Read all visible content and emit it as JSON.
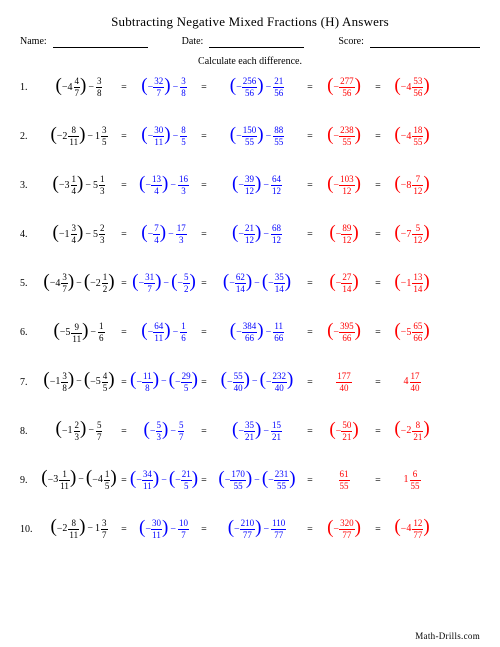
{
  "title": "Subtracting Negative Mixed Fractions (H) Answers",
  "header": {
    "name_lbl": "Name:",
    "date_lbl": "Date:",
    "score_lbl": "Score:"
  },
  "instruction": "Calculate each difference.",
  "footer": "Math-Drills.com",
  "col_widths": {
    "c0": 78,
    "c1": 68,
    "c2": 94,
    "c3": 56,
    "c4": 56
  },
  "colors": {
    "black": "#000000",
    "blue": "#0000ff",
    "red": "#ff0000"
  },
  "rows": [
    {
      "n": "1.",
      "c0": {
        "type": "mix_minus_frac",
        "a": {
          "s": "-",
          "w": "4",
          "n": "4",
          "d": "7"
        },
        "b": {
          "n": "3",
          "d": "8"
        }
      },
      "c1": {
        "type": "frac_minus_frac",
        "a": {
          "s": "-",
          "n": "32",
          "d": "7"
        },
        "b": {
          "n": "3",
          "d": "8"
        }
      },
      "c2": {
        "type": "frac_minus_frac",
        "a": {
          "s": "-",
          "n": "256",
          "d": "56"
        },
        "b": {
          "n": "21",
          "d": "56"
        }
      },
      "c3": {
        "type": "pfrac",
        "s": "-",
        "n": "277",
        "d": "56",
        "red": true
      },
      "c4": {
        "type": "pmix",
        "s": "-",
        "w": "4",
        "n": "53",
        "d": "56",
        "red": true
      }
    },
    {
      "n": "2.",
      "c0": {
        "type": "mix_minus_mix",
        "a": {
          "s": "-",
          "w": "2",
          "n": "8",
          "d": "11"
        },
        "b": {
          "w": "1",
          "n": "3",
          "d": "5"
        }
      },
      "c1": {
        "type": "frac_minus_frac",
        "a": {
          "s": "-",
          "n": "30",
          "d": "11"
        },
        "b": {
          "n": "8",
          "d": "5"
        }
      },
      "c2": {
        "type": "frac_minus_frac",
        "a": {
          "s": "-",
          "n": "150",
          "d": "55"
        },
        "b": {
          "n": "88",
          "d": "55"
        }
      },
      "c3": {
        "type": "pfrac",
        "s": "-",
        "n": "238",
        "d": "55",
        "red": true
      },
      "c4": {
        "type": "pmix",
        "s": "-",
        "w": "4",
        "n": "18",
        "d": "55",
        "red": true
      }
    },
    {
      "n": "3.",
      "c0": {
        "type": "mix_minus_mix",
        "a": {
          "s": "-",
          "w": "3",
          "n": "1",
          "d": "4"
        },
        "b": {
          "w": "5",
          "n": "1",
          "d": "3"
        }
      },
      "c1": {
        "type": "frac_minus_frac",
        "a": {
          "s": "-",
          "n": "13",
          "d": "4"
        },
        "b": {
          "n": "16",
          "d": "3"
        }
      },
      "c2": {
        "type": "frac_minus_frac",
        "a": {
          "s": "-",
          "n": "39",
          "d": "12"
        },
        "b": {
          "n": "64",
          "d": "12"
        }
      },
      "c3": {
        "type": "pfrac",
        "s": "-",
        "n": "103",
        "d": "12",
        "red": true
      },
      "c4": {
        "type": "pmix",
        "s": "-",
        "w": "8",
        "n": "7",
        "d": "12",
        "red": true
      }
    },
    {
      "n": "4.",
      "c0": {
        "type": "mix_minus_mix",
        "a": {
          "s": "-",
          "w": "1",
          "n": "3",
          "d": "4"
        },
        "b": {
          "w": "5",
          "n": "2",
          "d": "3"
        }
      },
      "c1": {
        "type": "frac_minus_frac",
        "a": {
          "s": "-",
          "n": "7",
          "d": "4"
        },
        "b": {
          "n": "17",
          "d": "3"
        }
      },
      "c2": {
        "type": "frac_minus_frac",
        "a": {
          "s": "-",
          "n": "21",
          "d": "12"
        },
        "b": {
          "n": "68",
          "d": "12"
        }
      },
      "c3": {
        "type": "pfrac",
        "s": "-",
        "n": "89",
        "d": "12",
        "red": true
      },
      "c4": {
        "type": "pmix",
        "s": "-",
        "w": "7",
        "n": "5",
        "d": "12",
        "red": true
      }
    },
    {
      "n": "5.",
      "c0": {
        "type": "mix_minus_pmix",
        "a": {
          "s": "-",
          "w": "4",
          "n": "3",
          "d": "7"
        },
        "b": {
          "s": "-",
          "w": "2",
          "n": "1",
          "d": "2"
        }
      },
      "c1": {
        "type": "frac_minus_pfrac",
        "a": {
          "s": "-",
          "n": "31",
          "d": "7"
        },
        "b": {
          "s": "-",
          "n": "5",
          "d": "2"
        }
      },
      "c2": {
        "type": "frac_minus_pfrac",
        "a": {
          "s": "-",
          "n": "62",
          "d": "14"
        },
        "b": {
          "s": "-",
          "n": "35",
          "d": "14"
        }
      },
      "c3": {
        "type": "pfrac",
        "s": "-",
        "n": "27",
        "d": "14",
        "red": true
      },
      "c4": {
        "type": "pmix",
        "s": "-",
        "w": "1",
        "n": "13",
        "d": "14",
        "red": true
      }
    },
    {
      "n": "6.",
      "c0": {
        "type": "mix_minus_frac",
        "a": {
          "s": "-",
          "w": "5",
          "n": "9",
          "d": "11"
        },
        "b": {
          "n": "1",
          "d": "6"
        }
      },
      "c1": {
        "type": "frac_minus_frac",
        "a": {
          "s": "-",
          "n": "64",
          "d": "11"
        },
        "b": {
          "n": "1",
          "d": "6"
        }
      },
      "c2": {
        "type": "frac_minus_frac",
        "a": {
          "s": "-",
          "n": "384",
          "d": "66"
        },
        "b": {
          "n": "11",
          "d": "66"
        }
      },
      "c3": {
        "type": "pfrac",
        "s": "-",
        "n": "395",
        "d": "66",
        "red": true
      },
      "c4": {
        "type": "pmix",
        "s": "-",
        "w": "5",
        "n": "65",
        "d": "66",
        "red": true
      }
    },
    {
      "n": "7.",
      "c0": {
        "type": "mix_minus_pmix",
        "a": {
          "s": "-",
          "w": "1",
          "n": "3",
          "d": "8"
        },
        "b": {
          "s": "-",
          "w": "5",
          "n": "4",
          "d": "5"
        }
      },
      "c1": {
        "type": "frac_minus_pfrac",
        "a": {
          "s": "-",
          "n": "11",
          "d": "8"
        },
        "b": {
          "s": "-",
          "n": "29",
          "d": "5"
        }
      },
      "c2": {
        "type": "frac_minus_pfrac",
        "a": {
          "s": "-",
          "n": "55",
          "d": "40"
        },
        "b": {
          "s": "-",
          "n": "232",
          "d": "40"
        }
      },
      "c3": {
        "type": "bfrac",
        "n": "177",
        "d": "40",
        "red": true
      },
      "c4": {
        "type": "bmix",
        "w": "4",
        "n": "17",
        "d": "40",
        "red": true
      }
    },
    {
      "n": "8.",
      "c0": {
        "type": "mix_minus_frac",
        "a": {
          "s": "-",
          "w": "1",
          "n": "2",
          "d": "3"
        },
        "b": {
          "n": "5",
          "d": "7"
        }
      },
      "c1": {
        "type": "frac_minus_frac",
        "a": {
          "s": "-",
          "n": "5",
          "d": "3"
        },
        "b": {
          "n": "5",
          "d": "7"
        }
      },
      "c2": {
        "type": "frac_minus_frac",
        "a": {
          "s": "-",
          "n": "35",
          "d": "21"
        },
        "b": {
          "n": "15",
          "d": "21"
        }
      },
      "c3": {
        "type": "pfrac",
        "s": "-",
        "n": "50",
        "d": "21",
        "red": true
      },
      "c4": {
        "type": "pmix",
        "s": "-",
        "w": "2",
        "n": "8",
        "d": "21",
        "red": true
      }
    },
    {
      "n": "9.",
      "c0": {
        "type": "mix_minus_pmix",
        "a": {
          "s": "-",
          "w": "3",
          "n": "1",
          "d": "11"
        },
        "b": {
          "s": "-",
          "w": "4",
          "n": "1",
          "d": "5"
        }
      },
      "c1": {
        "type": "frac_minus_pfrac",
        "a": {
          "s": "-",
          "n": "34",
          "d": "11"
        },
        "b": {
          "s": "-",
          "n": "21",
          "d": "5"
        }
      },
      "c2": {
        "type": "frac_minus_pfrac",
        "a": {
          "s": "-",
          "n": "170",
          "d": "55"
        },
        "b": {
          "s": "-",
          "n": "231",
          "d": "55"
        }
      },
      "c3": {
        "type": "bfrac",
        "n": "61",
        "d": "55",
        "red": true
      },
      "c4": {
        "type": "bmix",
        "w": "1",
        "n": "6",
        "d": "55",
        "red": true
      }
    },
    {
      "n": "10.",
      "c0": {
        "type": "mix_minus_mix",
        "a": {
          "s": "-",
          "w": "2",
          "n": "8",
          "d": "11"
        },
        "b": {
          "w": "1",
          "n": "3",
          "d": "7"
        }
      },
      "c1": {
        "type": "frac_minus_frac",
        "a": {
          "s": "-",
          "n": "30",
          "d": "11"
        },
        "b": {
          "n": "10",
          "d": "7"
        }
      },
      "c2": {
        "type": "frac_minus_frac",
        "a": {
          "s": "-",
          "n": "210",
          "d": "77"
        },
        "b": {
          "n": "110",
          "d": "77"
        }
      },
      "c3": {
        "type": "pfrac",
        "s": "-",
        "n": "320",
        "d": "77",
        "red": true
      },
      "c4": {
        "type": "pmix",
        "s": "-",
        "w": "4",
        "n": "12",
        "d": "77",
        "red": true
      }
    }
  ]
}
